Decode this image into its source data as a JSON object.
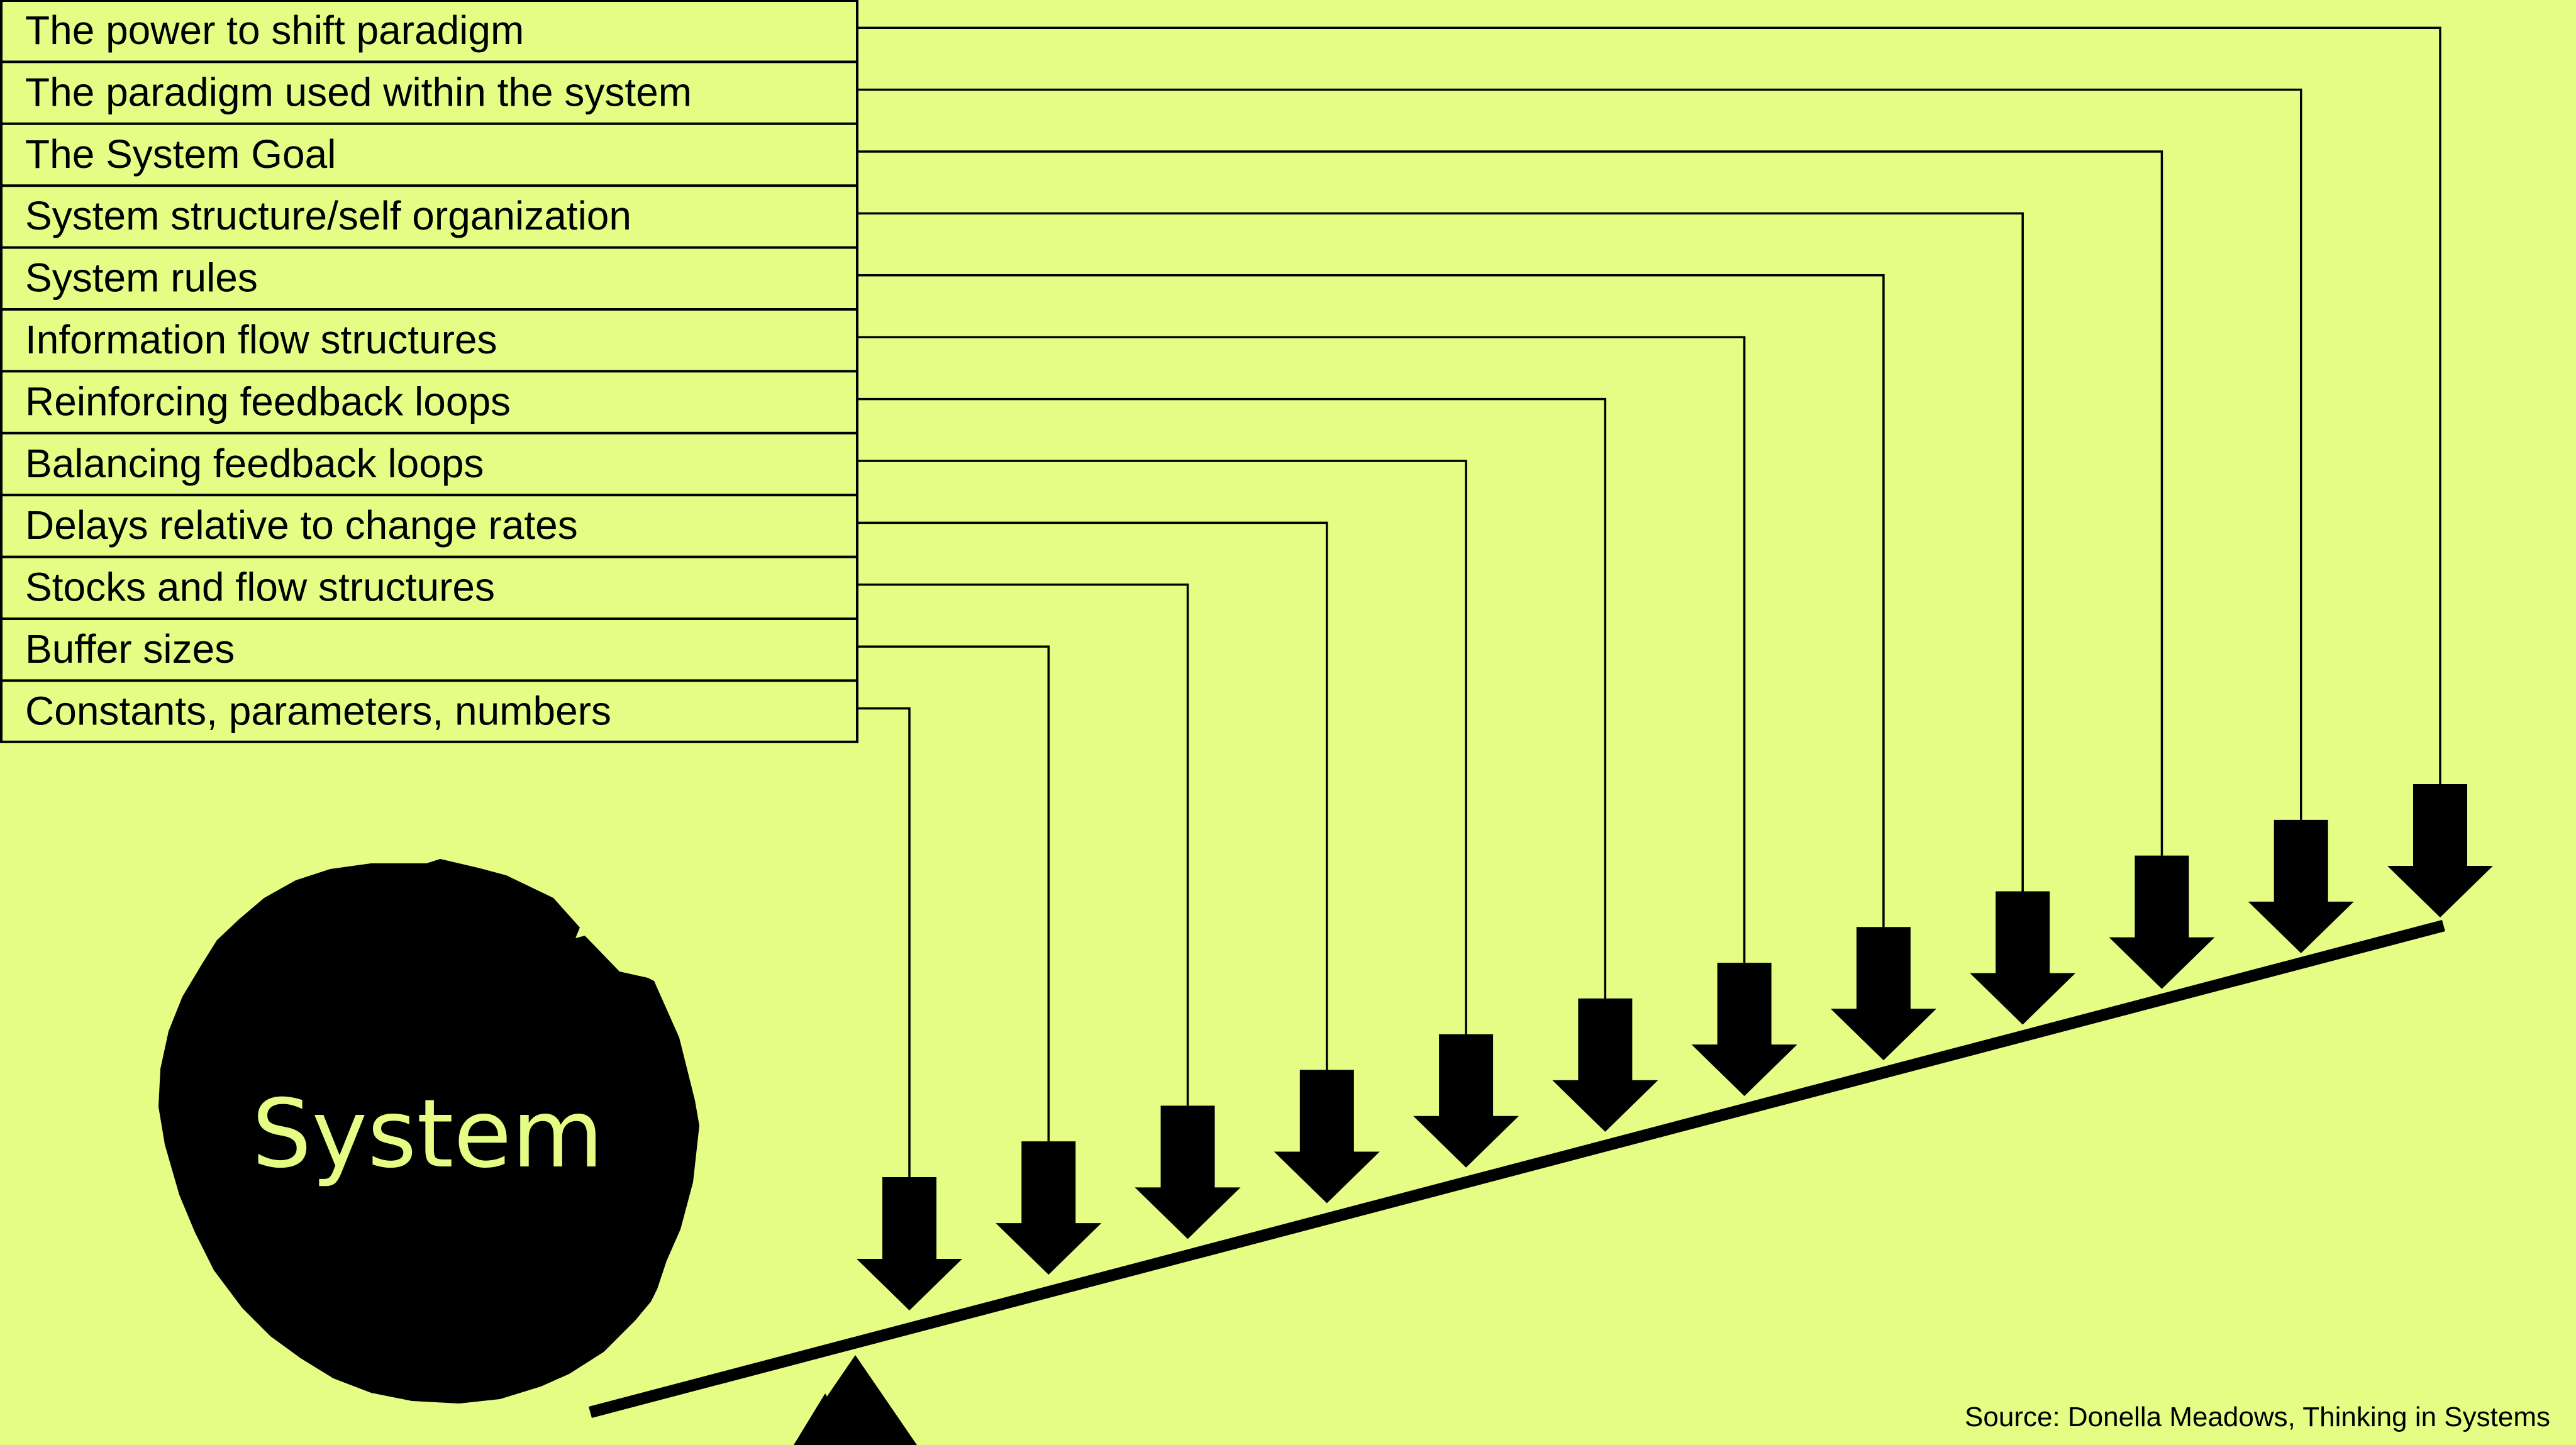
{
  "leverage_points": [
    "The power to shift paradigm",
    "The paradigm used within the system",
    "The System Goal",
    "System structure/self organization",
    "System rules",
    "Information flow structures",
    "Reinforcing feedback loops",
    "Balancing feedback loops",
    "Delays relative to change rates",
    "Stocks and flow structures",
    "Buffer sizes",
    "Constants, parameters, numbers"
  ],
  "system_label": "System",
  "source": "Source: Donella Meadows, Thinking in Systems",
  "colors": {
    "background": "#e5fd84",
    "ink": "#000000"
  }
}
